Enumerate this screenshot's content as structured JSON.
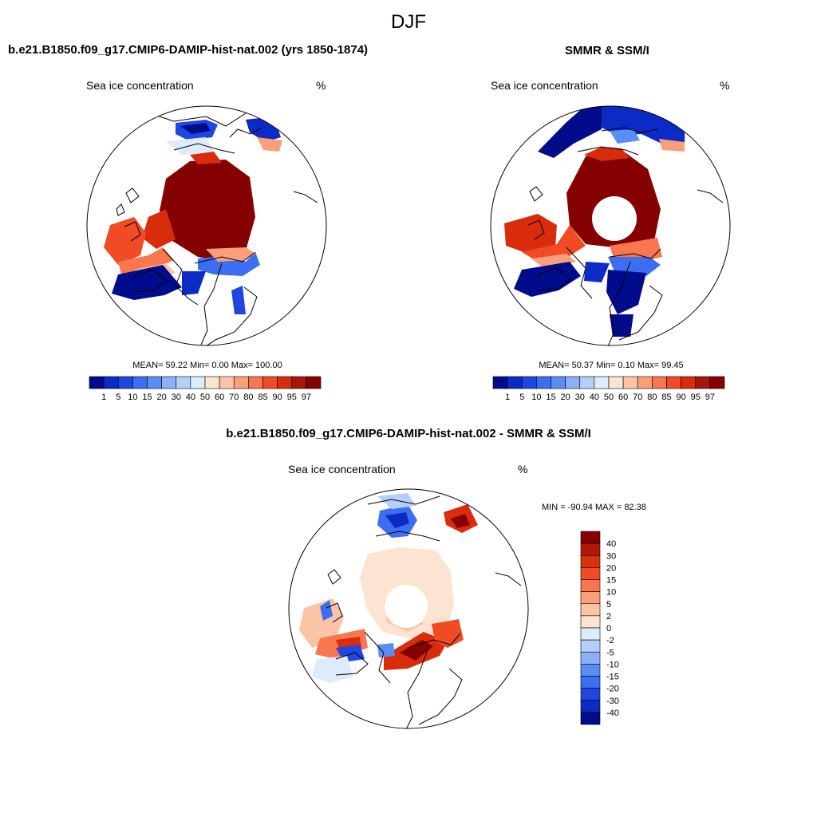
{
  "figure": {
    "season": "DJF",
    "model_title": "b.e21.B1850.f09_g17.CMIP6-DAMIP-hist-nat.002 (yrs 1850-1874)",
    "obs_title": "SMMR & SSM/I",
    "diff_title": "b.e21.B1850.f09_g17.CMIP6-DAMIP-hist-nat.002 - SMMR & SSM/I"
  },
  "panels": {
    "model": {
      "variable": "Sea ice concentration",
      "units": "%",
      "stats": "MEAN=  59.22  Min=   0.00  Max= 100.00"
    },
    "obs": {
      "variable": "Sea ice concentration",
      "units": "%",
      "stats": "MEAN=  50.37  Min=   0.10  Max=  99.45"
    },
    "diff": {
      "variable": "Sea ice concentration",
      "units": "%",
      "stats": "MIN = -90.94 MAX =  82.38"
    }
  },
  "colorbars": {
    "abs": {
      "labels": [
        "1",
        "5",
        "10",
        "15",
        "20",
        "30",
        "40",
        "50",
        "60",
        "70",
        "80",
        "85",
        "90",
        "95",
        "97"
      ],
      "colors": [
        "#000c8b",
        "#0c2bc4",
        "#1f47e0",
        "#3b6ef0",
        "#5a8df5",
        "#8bb0f8",
        "#b5cff8",
        "#ddebfb",
        "#fde4d2",
        "#fcc4a6",
        "#fb9f7a",
        "#f87650",
        "#f04b25",
        "#d92c0c",
        "#a8150a",
        "#850000"
      ]
    },
    "diff": {
      "labels": [
        "40",
        "30",
        "20",
        "15",
        "10",
        "5",
        "2",
        "0",
        "-2",
        "-5",
        "-10",
        "-15",
        "-20",
        "-30",
        "-40"
      ],
      "colors": [
        "#850000",
        "#b01a05",
        "#d8320c",
        "#f04b25",
        "#f87650",
        "#fb9f7a",
        "#fcc4a6",
        "#fde4d2",
        "#ddebfb",
        "#b5cff8",
        "#8bb0f8",
        "#5a8df5",
        "#3b6ef0",
        "#1f47e0",
        "#0c2bc4",
        "#000c8b"
      ]
    }
  }
}
